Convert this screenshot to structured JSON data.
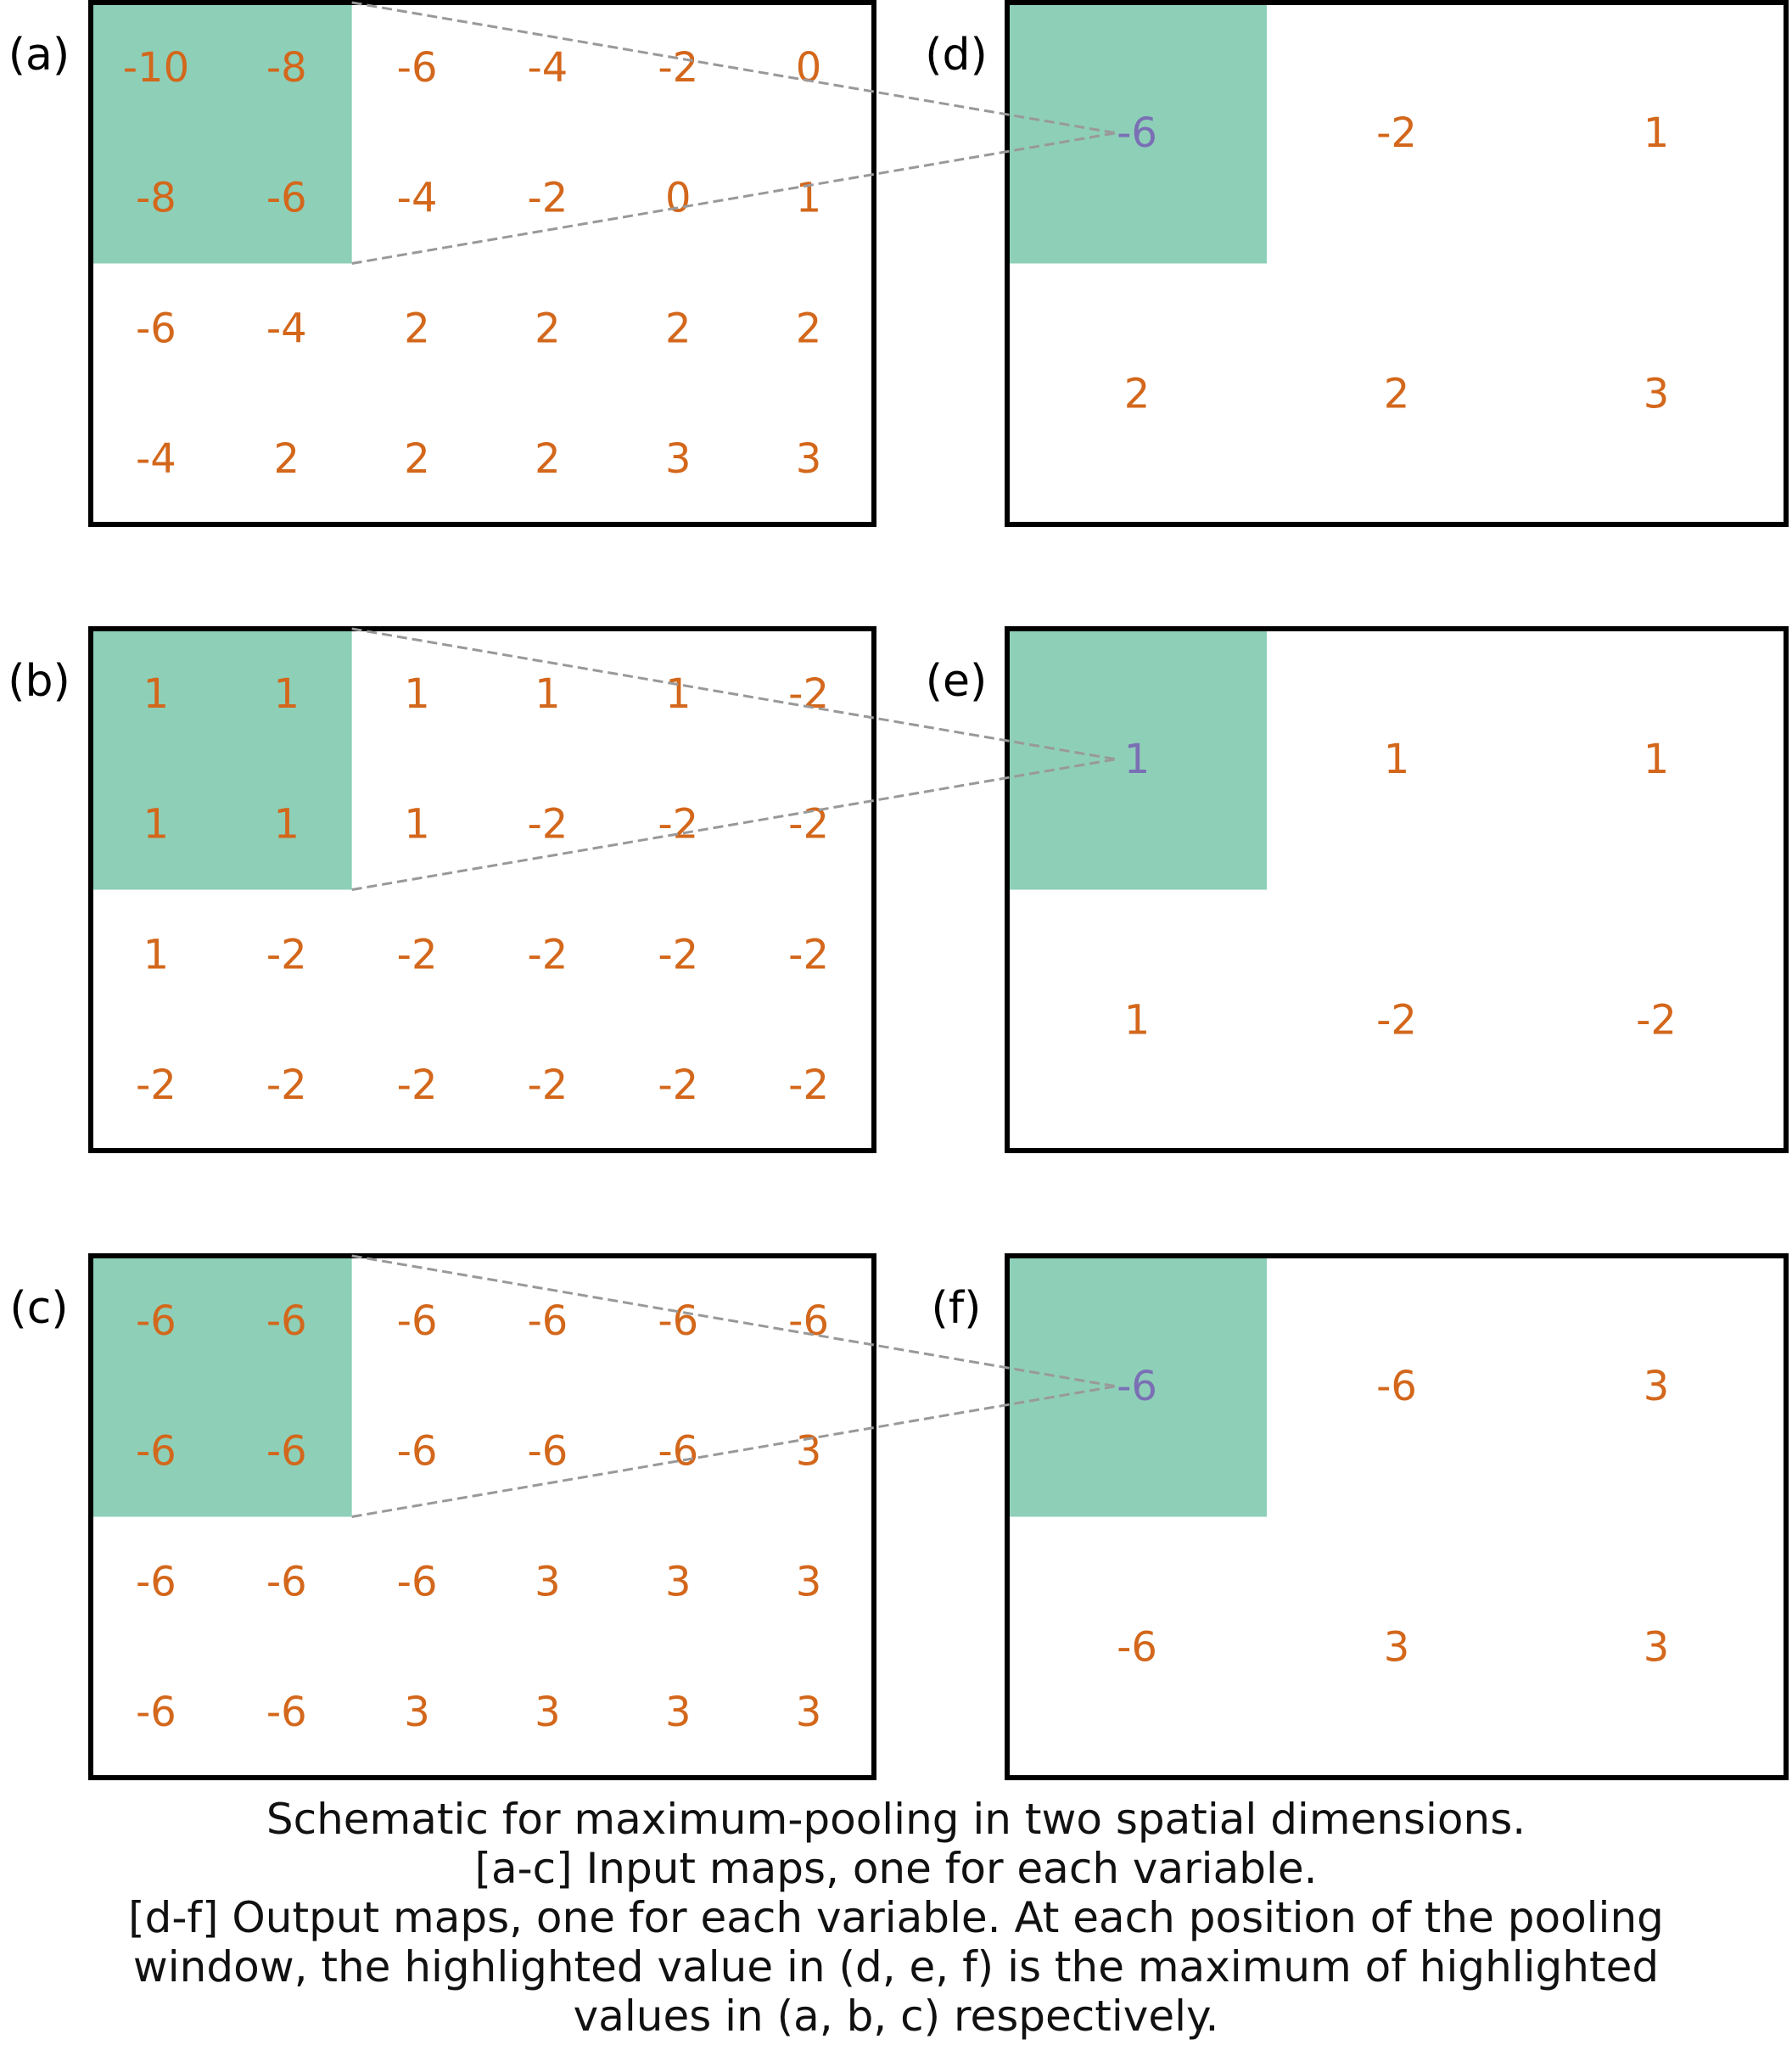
{
  "colors": {
    "highlight": "#8ecfb8",
    "value": "#d3671b",
    "pooled_value": "#7a6fb4",
    "frame": "#000000",
    "connector": "#999999"
  },
  "rows": [
    {
      "input_label": "(a)",
      "output_label": "(d)",
      "input": [
        [
          "-10",
          "-8",
          "-6",
          "-4",
          "-2",
          "0"
        ],
        [
          "-8",
          "-6",
          "-4",
          "-2",
          "0",
          "1"
        ],
        [
          "-6",
          "-4",
          "2",
          "2",
          "2",
          "2"
        ],
        [
          "-4",
          "2",
          "2",
          "2",
          "3",
          "3"
        ]
      ],
      "output": [
        [
          "-6",
          "-2",
          "1"
        ],
        [
          "2",
          "2",
          "3"
        ]
      ]
    },
    {
      "input_label": "(b)",
      "output_label": "(e)",
      "input": [
        [
          "1",
          "1",
          "1",
          "1",
          "1",
          "-2"
        ],
        [
          "1",
          "1",
          "1",
          "-2",
          "-2",
          "-2"
        ],
        [
          "1",
          "-2",
          "-2",
          "-2",
          "-2",
          "-2"
        ],
        [
          "-2",
          "-2",
          "-2",
          "-2",
          "-2",
          "-2"
        ]
      ],
      "output": [
        [
          "1",
          "1",
          "1"
        ],
        [
          "1",
          "-2",
          "-2"
        ]
      ]
    },
    {
      "input_label": "(c)",
      "output_label": "(f)",
      "input": [
        [
          "-6",
          "-6",
          "-6",
          "-6",
          "-6",
          "-6"
        ],
        [
          "-6",
          "-6",
          "-6",
          "-6",
          "-6",
          "3"
        ],
        [
          "-6",
          "-6",
          "-6",
          "3",
          "3",
          "3"
        ],
        [
          "-6",
          "-6",
          "3",
          "3",
          "3",
          "3"
        ]
      ],
      "output": [
        [
          "-6",
          "-6",
          "3"
        ],
        [
          "-6",
          "3",
          "3"
        ]
      ]
    }
  ],
  "caption": {
    "line1": "Schematic for maximum-pooling in two spatial dimensions.",
    "line2": "[a-c] Input maps, one for each variable.",
    "line3": "[d-f] Output maps, one for each variable.  At each position of the pooling",
    "line4": "window, the highlighted value in (d, e, f) is the maximum of highlighted",
    "line5": "values in (a, b, c) respectively."
  }
}
